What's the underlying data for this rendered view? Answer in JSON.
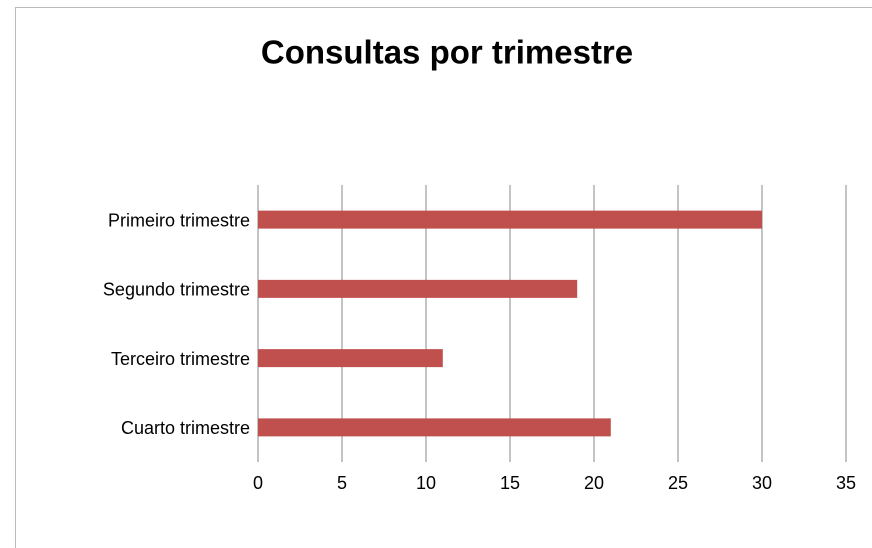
{
  "chart_data": {
    "type": "bar",
    "orientation": "horizontal",
    "title": "Consultas por trimestre",
    "categories": [
      "Primeiro trimestre",
      "Segundo trimestre",
      "Terceiro trimestre",
      "Cuarto trimestre"
    ],
    "values": [
      30,
      19,
      11,
      21
    ],
    "color": "#c0504d",
    "xlim": [
      0,
      35
    ],
    "xticks": [
      0,
      5,
      10,
      15,
      20,
      25,
      30,
      35
    ],
    "grid": true
  }
}
